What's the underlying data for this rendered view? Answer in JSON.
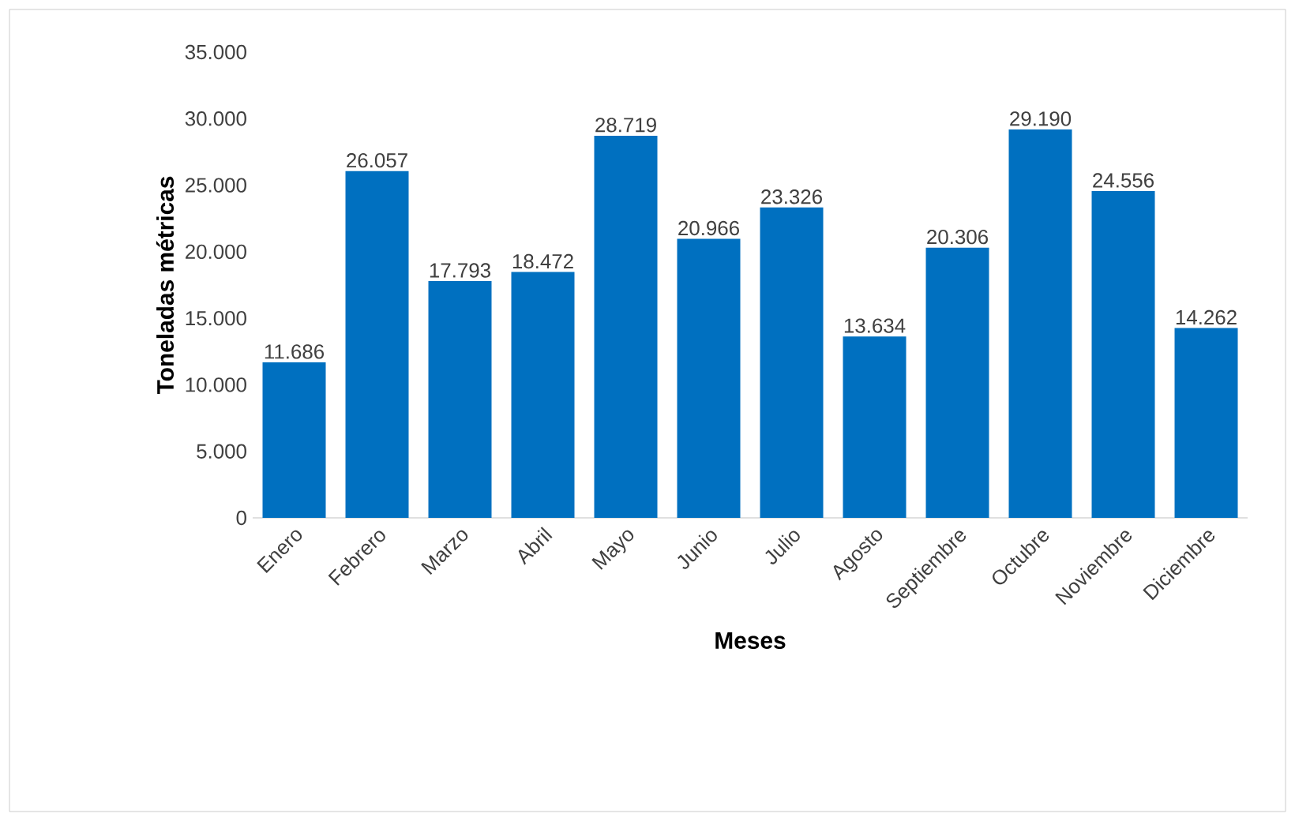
{
  "chart_data": {
    "type": "bar",
    "xlabel": "Meses",
    "ylabel": "Toneladas métricas",
    "categories": [
      "Enero",
      "Febrero",
      "Marzo",
      "Abril",
      "Mayo",
      "Junio",
      "Julio",
      "Agosto",
      "Septiembre",
      "Octubre",
      "Noviembre",
      "Diciembre"
    ],
    "values": [
      11686,
      26057,
      17793,
      18472,
      28719,
      20966,
      23326,
      13634,
      20306,
      29190,
      24556,
      14262
    ],
    "value_labels": [
      "11.686",
      "26.057",
      "17.793",
      "18.472",
      "28.719",
      "20.966",
      "23.326",
      "13.634",
      "20.306",
      "29.190",
      "24.556",
      "14.262"
    ],
    "color": "#0070c0",
    "ylim": [
      0,
      35000
    ],
    "yticks": [
      0,
      {
        "value": 5000,
        "label": "5.000"
      },
      {
        "value": 10000,
        "label": "10.000"
      },
      {
        "value": 15000,
        "label": "15.000"
      },
      {
        "value": 20000,
        "label": "20.000"
      },
      {
        "value": 25000,
        "label": "25.000"
      },
      {
        "value": 30000,
        "label": "30.000"
      },
      {
        "value": 35000,
        "label": "35.000"
      }
    ]
  }
}
